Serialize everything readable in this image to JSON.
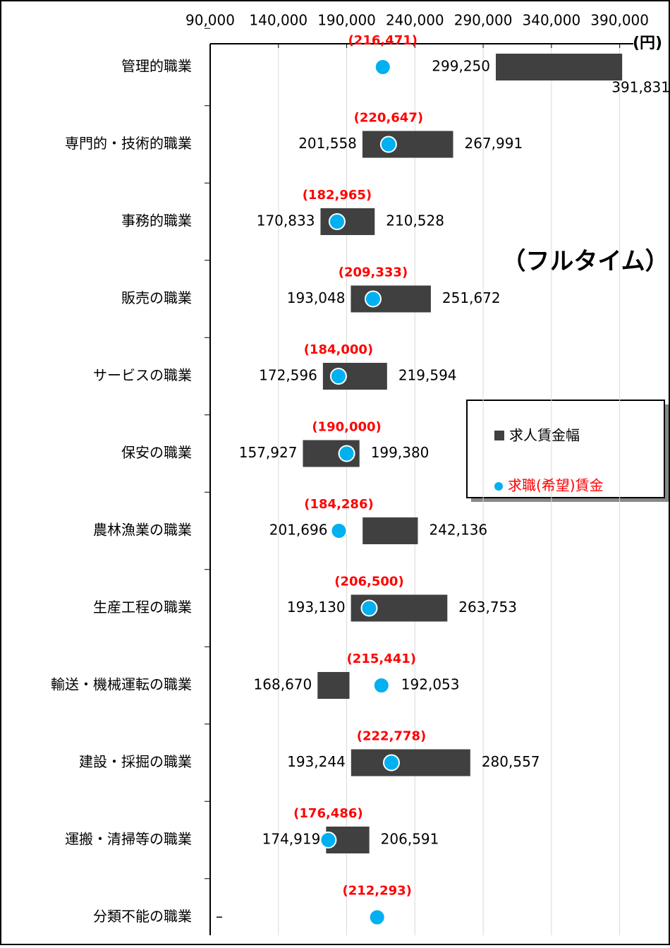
{
  "chart_data": {
    "type": "range_dot",
    "annotation": "（フルタイム）",
    "x_unit": "(円)",
    "categories": [
      "管理的職業",
      "専門的・技術的職業",
      "事務的職業",
      "販売の職業",
      "サービスの職業",
      "保安の職業",
      "農林漁業の職業",
      "生産工程の職業",
      "輸送・機械運転の職業",
      "建設・採掘の職業",
      "運搬・清掃等の職業",
      "分類不能の職業"
    ],
    "series": [
      {
        "name": "求人賃金幅",
        "color": "#404040",
        "low": [
          299250,
          201558,
          170833,
          193048,
          172596,
          157927,
          201696,
          193130,
          168670,
          193244,
          174919,
          null
        ],
        "high": [
          391831,
          267991,
          210528,
          251672,
          219594,
          199380,
          242136,
          263753,
          192053,
          280557,
          206591,
          null
        ],
        "low_labels": [
          "299,250",
          "201,558",
          "170,833",
          "193,048",
          "172,596",
          "157,927",
          "201,696",
          "193,130",
          "168,670",
          "193,244",
          "174,919",
          "–"
        ],
        "high_labels": [
          "391,831",
          "267,991",
          "210,528",
          "251,672",
          "219,594",
          "199,380",
          "242,136",
          "263,753",
          "192,053",
          "280,557",
          "206,591",
          null
        ]
      },
      {
        "name": "求職(希望)賃金",
        "color": "#00b0f0",
        "values": [
          216471,
          220647,
          182965,
          209333,
          184000,
          190000,
          184286,
          206500,
          215441,
          222778,
          176486,
          212293
        ],
        "value_labels": [
          "(216,471)",
          "(220,647)",
          "(182,965)",
          "(209,333)",
          "(184,000)",
          "(190,000)",
          "(184,286)",
          "(206,500)",
          "(215,441)",
          "(222,778)",
          "(176,486)",
          "(212,293)"
        ]
      }
    ],
    "xlim": [
      90000,
      400000
    ],
    "xticks": [
      {
        "value": 90000,
        "label": "90,000"
      },
      {
        "value": 140000,
        "label": "140,000"
      },
      {
        "value": 190000,
        "label": "190,000"
      },
      {
        "value": 240000,
        "label": "240,000"
      },
      {
        "value": 290000,
        "label": "290,000"
      },
      {
        "value": 340000,
        "label": "340,000"
      },
      {
        "value": 390000,
        "label": "390,000"
      }
    ],
    "grid": true
  }
}
